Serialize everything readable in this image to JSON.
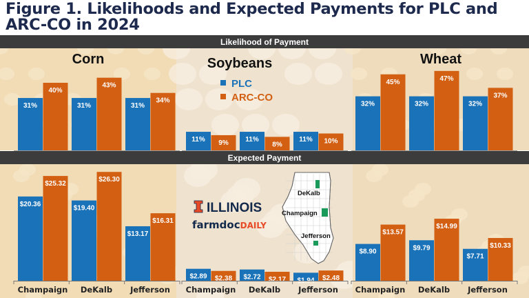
{
  "title": "Figure 1. Likelihoods and Expected Payments for PLC and ARC-CO in 2024",
  "colors": {
    "PLC": "#1a72b8",
    "ARC-CO": "#d25f12",
    "band": "#3c3c3c",
    "title": "#1d2a4d",
    "county_highlight": "#1a9a5a"
  },
  "logos": {
    "university": "ILLINOIS",
    "farmdoc_1": "farmdoc",
    "farmdoc_2": "DAILY"
  },
  "map": {
    "counties": [
      "DeKalb",
      "Champaign",
      "Jefferson"
    ]
  },
  "chart_data": [
    {
      "type": "bar",
      "title": "Likelihood of Payment",
      "unit": "%",
      "legend": {
        "placement": "top-center",
        "entries": [
          "PLC",
          "ARC-CO"
        ]
      },
      "panels": [
        {
          "crop": "Corn",
          "categories": [
            "Champaign",
            "DeKalb",
            "Jefferson"
          ],
          "series": [
            {
              "name": "PLC",
              "values": [
                31,
                31,
                31
              ]
            },
            {
              "name": "ARC-CO",
              "values": [
                40,
                43,
                34
              ]
            }
          ]
        },
        {
          "crop": "Soybeans",
          "categories": [
            "Champaign",
            "DeKalb",
            "Jefferson"
          ],
          "series": [
            {
              "name": "PLC",
              "values": [
                11,
                11,
                11
              ]
            },
            {
              "name": "ARC-CO",
              "values": [
                9,
                8,
                10
              ]
            }
          ]
        },
        {
          "crop": "Wheat",
          "categories": [
            "Champaign",
            "DeKalb",
            "Jefferson"
          ],
          "series": [
            {
              "name": "PLC",
              "values": [
                32,
                32,
                32
              ]
            },
            {
              "name": "ARC-CO",
              "values": [
                45,
                47,
                37
              ]
            }
          ]
        }
      ]
    },
    {
      "type": "bar",
      "title": "Expected Payment",
      "unit": "$",
      "panels": [
        {
          "crop": "Corn",
          "categories": [
            "Champaign",
            "DeKalb",
            "Jefferson"
          ],
          "series": [
            {
              "name": "PLC",
              "values": [
                20.36,
                19.4,
                13.17
              ]
            },
            {
              "name": "ARC-CO",
              "values": [
                25.32,
                26.3,
                16.31
              ]
            }
          ]
        },
        {
          "crop": "Soybeans",
          "categories": [
            "Champaign",
            "DeKalb",
            "Jefferson"
          ],
          "series": [
            {
              "name": "PLC",
              "values": [
                2.89,
                2.72,
                1.94
              ]
            },
            {
              "name": "ARC-CO",
              "values": [
                2.38,
                2.17,
                2.48
              ]
            }
          ]
        },
        {
          "crop": "Wheat",
          "categories": [
            "Champaign",
            "DeKalb",
            "Jefferson"
          ],
          "series": [
            {
              "name": "PLC",
              "values": [
                8.9,
                9.79,
                7.71
              ]
            },
            {
              "name": "ARC-CO",
              "values": [
                13.57,
                14.99,
                10.33
              ]
            }
          ]
        }
      ]
    }
  ]
}
